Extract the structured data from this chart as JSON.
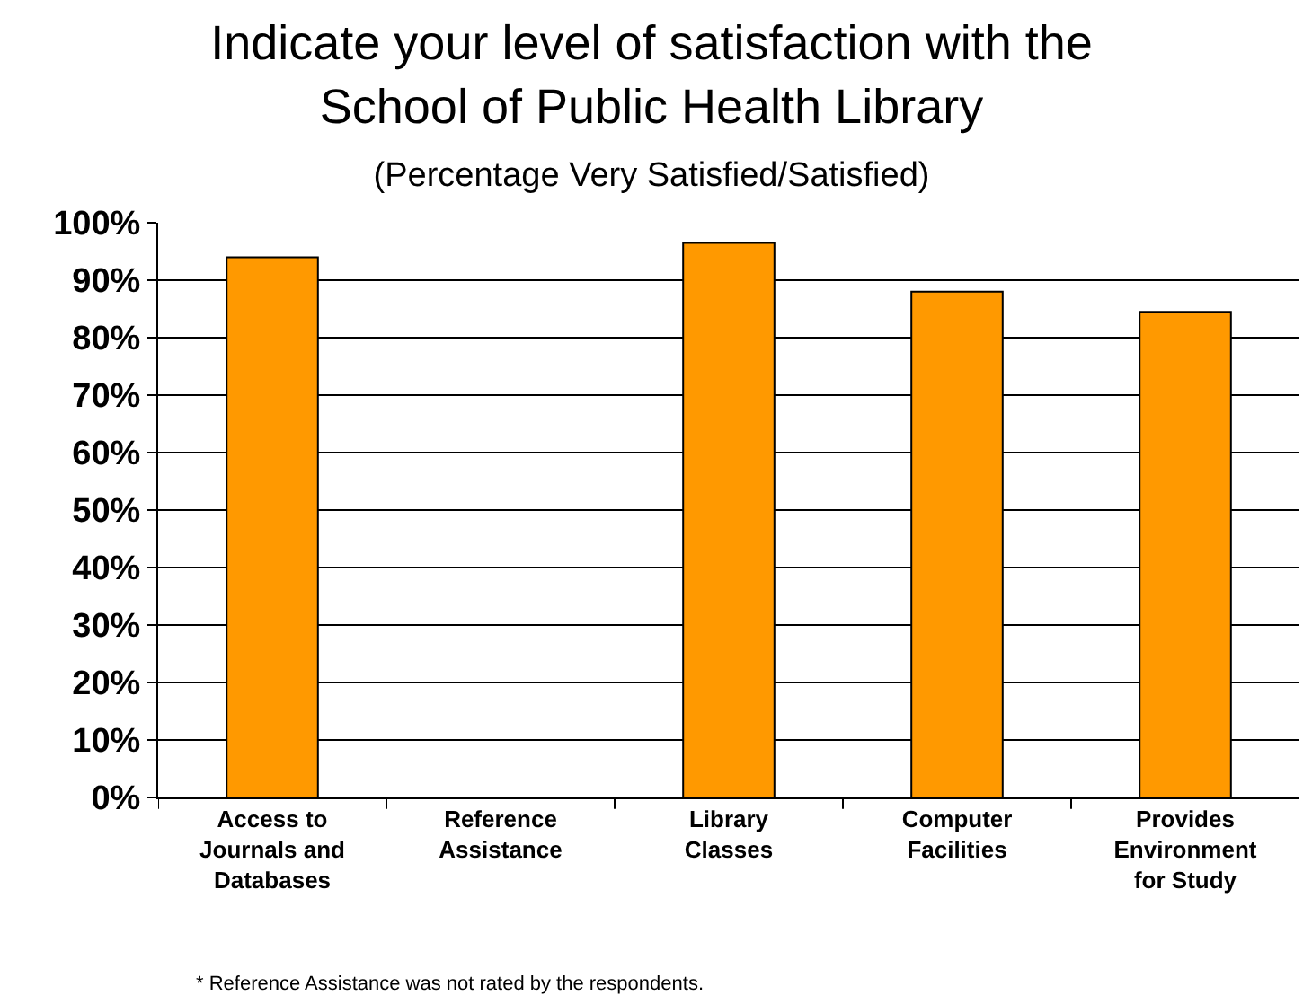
{
  "chart_data": {
    "type": "bar",
    "title": "Indicate your level of satisfaction with the School of Public Health Library",
    "subtitle": "(Percentage Very Satisfied/Satisfied)",
    "categories": [
      "Access to Journals and Databases",
      "Reference Assistance",
      "Library Classes",
      "Computer Facilities",
      "Provides Environment for Study"
    ],
    "values": [
      94,
      null,
      96.5,
      88,
      84.5
    ],
    "color": "#ff9900",
    "ylim": [
      0,
      100
    ],
    "yticks": [
      {
        "value": 0,
        "label": "0%"
      },
      {
        "value": 10,
        "label": "10%"
      },
      {
        "value": 20,
        "label": "20%"
      },
      {
        "value": 30,
        "label": "30%"
      },
      {
        "value": 40,
        "label": "40%"
      },
      {
        "value": 50,
        "label": "50%"
      },
      {
        "value": 60,
        "label": "60%"
      },
      {
        "value": 70,
        "label": "70%"
      },
      {
        "value": 80,
        "label": "80%"
      },
      {
        "value": 90,
        "label": "90%"
      },
      {
        "value": 100,
        "label": "100%"
      }
    ],
    "grid": "y",
    "legend": false,
    "annotations": [
      "* Reference Assistance was not rated by the respondents."
    ]
  }
}
